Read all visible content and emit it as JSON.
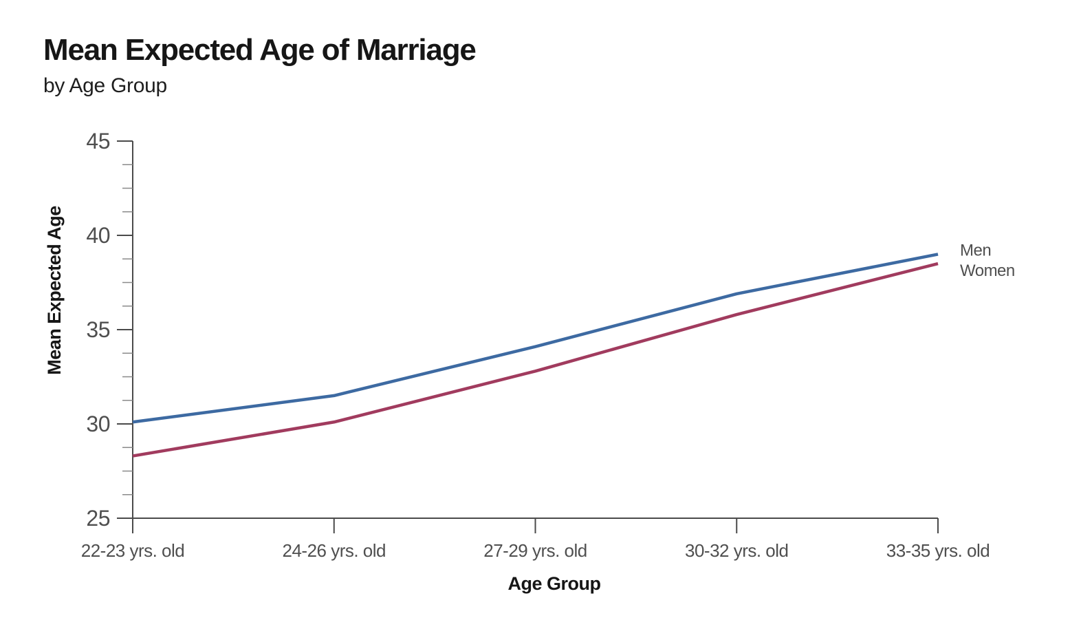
{
  "chart_data": {
    "type": "line",
    "title": "Mean Expected Age of Marriage",
    "subtitle": "by Age Group",
    "xlabel": "Age Group",
    "ylabel": "Mean Expected Age",
    "categories": [
      "22-23 yrs. old",
      "24-26 yrs. old",
      "27-29 yrs. old",
      "30-32 yrs. old",
      "33-35 yrs. old"
    ],
    "series": [
      {
        "name": "Men",
        "color": "#3d6aa2",
        "values": [
          30.1,
          31.5,
          34.1,
          36.9,
          39.0
        ]
      },
      {
        "name": "Women",
        "color": "#a13b5e",
        "values": [
          28.3,
          30.1,
          32.8,
          35.8,
          38.5
        ]
      }
    ],
    "ylim": [
      25,
      45
    ],
    "y_major_ticks": [
      45,
      40,
      35,
      30,
      25
    ],
    "y_minor_step": 1.25,
    "grid": "off",
    "legend_position": "end-of-line-labels",
    "colors": {
      "axis": "#4a4a4a",
      "minor_tick": "#8a8a8a",
      "tick_label": "#4f4f4f",
      "legend_label": "#4f4f4f",
      "axis_title": "#161616",
      "background": "#ffffff"
    }
  }
}
